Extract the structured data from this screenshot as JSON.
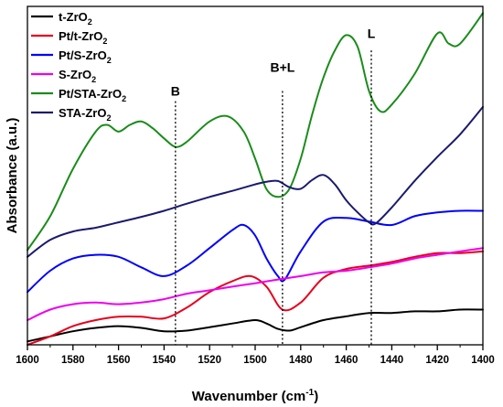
{
  "chart_data": {
    "type": "line",
    "xlabel": "Wavenumber (cm",
    "xlabel_sup": "-1",
    "xlabel_close": ")",
    "ylabel": "Absorbance (a.u.)",
    "xlim": [
      1600,
      1400
    ],
    "ylim": [
      0,
      100
    ],
    "x_ticks": [
      1600,
      1580,
      1560,
      1540,
      1520,
      1500,
      1480,
      1460,
      1440,
      1420,
      1400
    ],
    "x_tick_labels": [
      "1600",
      "1580",
      "1560",
      "1540",
      "1520",
      "1500",
      "1480",
      "1460",
      "1440",
      "1420",
      "1400"
    ],
    "y_ticks_shown": false,
    "grid": false,
    "legend_position": "top-left",
    "annotations": [
      {
        "label": "B",
        "x": 1535,
        "line_top": 72,
        "text_y": 75
      },
      {
        "label": "B+L",
        "x": 1488,
        "line_top": 75,
        "text_y": 82
      },
      {
        "label": "L",
        "x": 1449,
        "line_top": 87,
        "text_y": 92
      }
    ],
    "series": [
      {
        "name_main": "t-ZrO",
        "name_sub": "2",
        "color": "#000000",
        "x": [
          1600,
          1590,
          1580,
          1570,
          1560,
          1550,
          1540,
          1530,
          1520,
          1510,
          1500,
          1495,
          1490,
          1485,
          1480,
          1470,
          1460,
          1450,
          1440,
          1430,
          1420,
          1410,
          1400
        ],
        "y": [
          1,
          2.5,
          4,
          5,
          5.5,
          5,
          4,
          4.2,
          5.2,
          6.3,
          7.3,
          6.3,
          4.7,
          4.2,
          5.2,
          7.3,
          8.4,
          9.4,
          9.4,
          9.9,
          9.9,
          10.4,
          10.4
        ]
      },
      {
        "name_main": "Pt/t-ZrO",
        "name_sub": "2",
        "color": "#e8001c",
        "x": [
          1600,
          1590,
          1580,
          1570,
          1560,
          1550,
          1540,
          1530,
          1520,
          1510,
          1502,
          1495,
          1488,
          1480,
          1470,
          1460,
          1450,
          1440,
          1430,
          1420,
          1410,
          1400
        ],
        "y": [
          0,
          2.5,
          5.5,
          7.3,
          8.3,
          8.3,
          7.8,
          11,
          15.6,
          18.8,
          20.3,
          17.2,
          10.4,
          12.5,
          19.8,
          22.4,
          23.4,
          24.5,
          26,
          27.1,
          27.1,
          27.6
        ]
      },
      {
        "name_main": "Pt/S-ZrO",
        "name_sub": "2",
        "color": "#0000ff",
        "x": [
          1600,
          1590,
          1580,
          1570,
          1560,
          1550,
          1540,
          1530,
          1520,
          1510,
          1505,
          1500,
          1495,
          1490,
          1487,
          1480,
          1470,
          1460,
          1450,
          1440,
          1430,
          1420,
          1410,
          1400
        ],
        "y": [
          15.6,
          21.9,
          25.5,
          26.6,
          26,
          22.9,
          20.3,
          23.4,
          28.6,
          33.9,
          35.4,
          32.3,
          25.5,
          20.3,
          19.3,
          27.6,
          36.4,
          37.5,
          36.4,
          35.4,
          38,
          39.1,
          39.6,
          39.6
        ]
      },
      {
        "name_main": "S-ZrO",
        "name_sub": "2",
        "color": "#ee00ee",
        "x": [
          1600,
          1590,
          1580,
          1570,
          1560,
          1550,
          1540,
          1530,
          1520,
          1510,
          1500,
          1490,
          1480,
          1470,
          1460,
          1450,
          1440,
          1430,
          1420,
          1410,
          1400
        ],
        "y": [
          7.3,
          10.4,
          12,
          12.5,
          12,
          12.5,
          13.5,
          15.1,
          16.1,
          17.2,
          18.2,
          19.3,
          20.3,
          21.4,
          21.9,
          22.9,
          24,
          25.5,
          26.6,
          27.6,
          28.6
        ]
      },
      {
        "name_main": "Pt/STA-ZrO",
        "name_sub": "2",
        "color": "#1a8c1a",
        "x": [
          1600,
          1590,
          1580,
          1570,
          1565,
          1560,
          1555,
          1550,
          1545,
          1540,
          1535,
          1530,
          1520,
          1512,
          1505,
          1500,
          1495,
          1490,
          1485,
          1480,
          1475,
          1470,
          1465,
          1460,
          1455,
          1450,
          1445,
          1440,
          1430,
          1420,
          1415,
          1410,
          1400
        ],
        "y": [
          28,
          38,
          52,
          63,
          65,
          63,
          65,
          66,
          64,
          61,
          58.5,
          60,
          66,
          67.5,
          63,
          55,
          46,
          43.7,
          46,
          55,
          68,
          79,
          87,
          91.5,
          88,
          75,
          69,
          71,
          80,
          92,
          89,
          89,
          98
        ]
      },
      {
        "name_main": "STA-ZrO",
        "name_sub": "2",
        "color": "#1a1a6e",
        "x": [
          1600,
          1590,
          1580,
          1570,
          1560,
          1550,
          1540,
          1530,
          1520,
          1510,
          1500,
          1495,
          1490,
          1485,
          1480,
          1475,
          1470,
          1465,
          1460,
          1455,
          1450,
          1447,
          1440,
          1430,
          1420,
          1410,
          1400
        ],
        "y": [
          26,
          31,
          33.5,
          34.6,
          36.2,
          37.8,
          39.6,
          41.7,
          43.7,
          45.5,
          47.4,
          48.2,
          48.4,
          46.6,
          46.1,
          48.7,
          50.2,
          47.4,
          42.7,
          39.1,
          36.2,
          35.9,
          40.6,
          48.4,
          55.5,
          62.2,
          70.3
        ]
      }
    ]
  }
}
